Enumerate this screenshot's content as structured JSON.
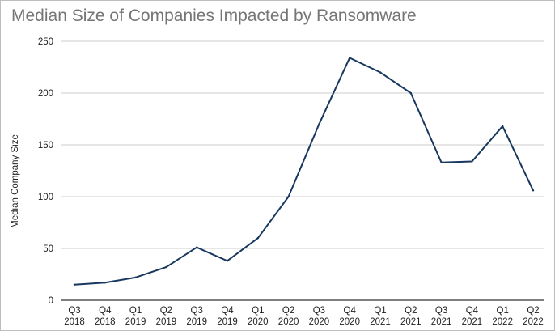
{
  "chart_data": {
    "type": "line",
    "title": "Median Size of Companies Impacted by Ransomware",
    "xlabel": "",
    "ylabel": "Median Company Size",
    "ylim": [
      0,
      250
    ],
    "yticks": [
      0,
      50,
      100,
      150,
      200,
      250
    ],
    "grid": true,
    "categories": [
      [
        "Q3",
        "2018"
      ],
      [
        "Q4",
        "2018"
      ],
      [
        "Q1",
        "2019"
      ],
      [
        "Q2",
        "2019"
      ],
      [
        "Q3",
        "2019"
      ],
      [
        "Q4",
        "2019"
      ],
      [
        "Q1",
        "2020"
      ],
      [
        "Q2",
        "2020"
      ],
      [
        "Q3",
        "2020"
      ],
      [
        "Q4",
        "2020"
      ],
      [
        "Q1",
        "2021"
      ],
      [
        "Q2",
        "2021"
      ],
      [
        "Q3",
        "2021"
      ],
      [
        "Q4",
        "2021"
      ],
      [
        "Q1",
        "2022"
      ],
      [
        "Q2",
        "2022"
      ]
    ],
    "series": [
      {
        "name": "Median Company Size",
        "color": "#17375e",
        "values": [
          15,
          17,
          22,
          32,
          51,
          38,
          60,
          100,
          170,
          234,
          220,
          200,
          133,
          134,
          168,
          106
        ]
      }
    ]
  }
}
